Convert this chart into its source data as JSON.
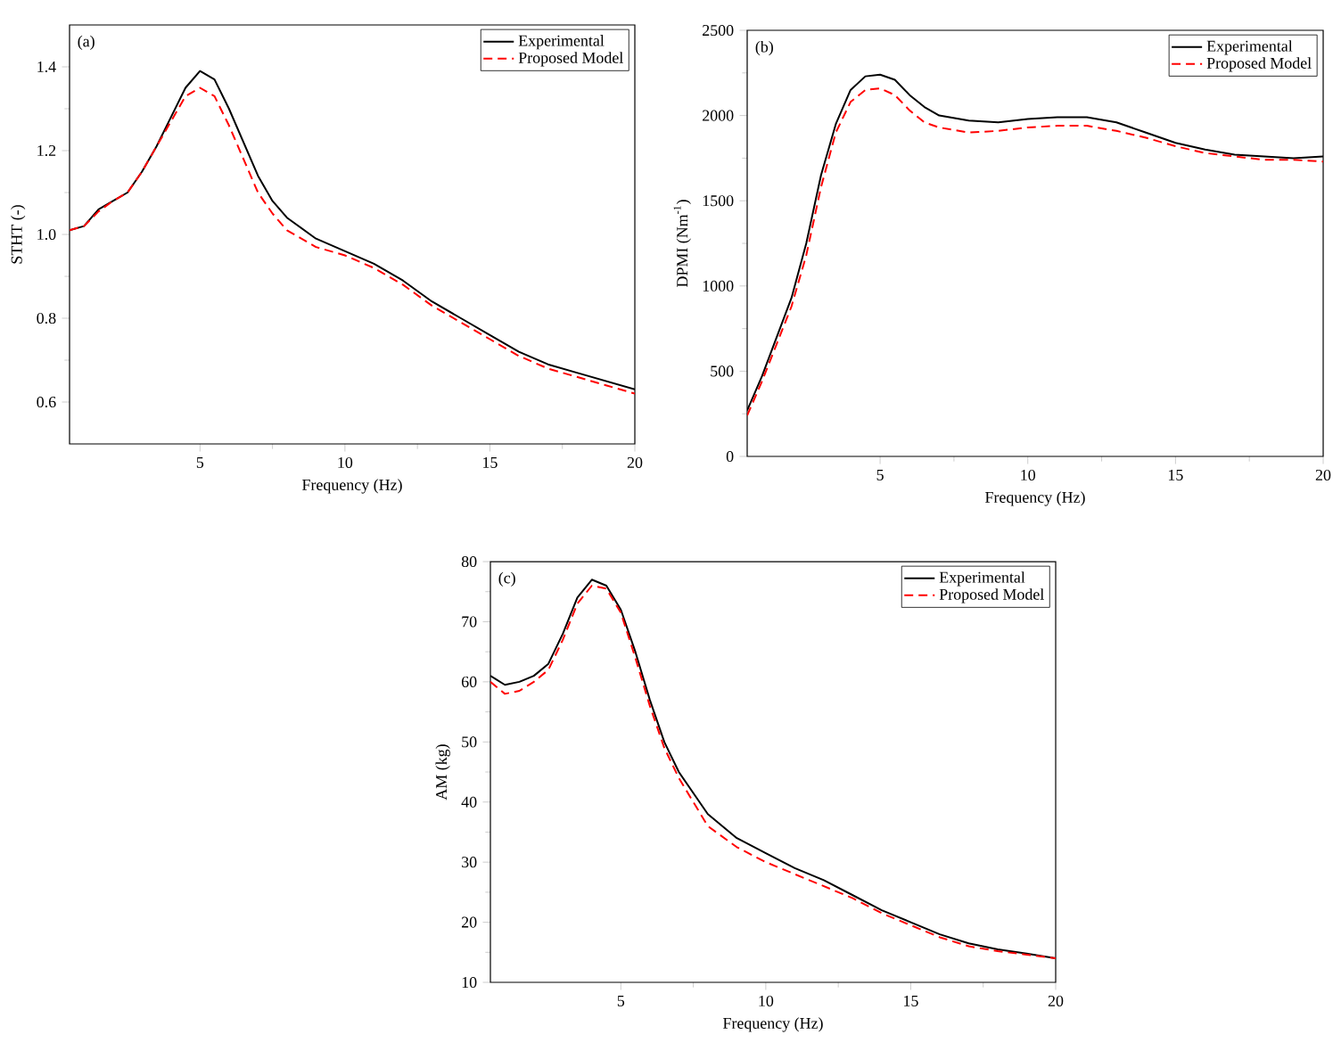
{
  "chart_data": [
    {
      "type": "line",
      "xlabel": "Frequency (Hz)",
      "ylabel": "STHT (-)",
      "annotations": [
        "(a)"
      ],
      "xlim": [
        0.5,
        20
      ],
      "ylim": [
        0.5,
        1.5
      ],
      "xticks": [
        5,
        10,
        15,
        20
      ],
      "yticks": [
        0.6,
        0.8,
        {
          "value": 1.0,
          "label": "1.0"
        },
        1.2,
        1.4
      ],
      "legend": "top right",
      "marker": "none",
      "x": [
        0.5,
        1,
        1.5,
        2,
        2.5,
        3,
        3.5,
        4,
        4.5,
        5,
        5.5,
        6,
        6.5,
        7,
        7.5,
        8,
        9,
        10,
        11,
        12,
        13,
        14,
        15,
        16,
        17,
        18,
        19,
        20
      ],
      "series": [
        {
          "name": "Experimental",
          "color": "#000000",
          "line_style": "solid",
          "values": [
            1.01,
            1.02,
            1.06,
            1.08,
            1.1,
            1.15,
            1.21,
            1.28,
            1.35,
            1.39,
            1.37,
            1.3,
            1.22,
            1.14,
            1.08,
            1.04,
            0.99,
            0.96,
            0.93,
            0.89,
            0.84,
            0.8,
            0.76,
            0.72,
            0.69,
            0.67,
            0.65,
            0.63
          ]
        },
        {
          "name": "Proposed Model",
          "color": "#ff0000",
          "line_style": "dashed",
          "values": [
            1.01,
            1.02,
            1.055,
            1.08,
            1.1,
            1.15,
            1.21,
            1.27,
            1.33,
            1.35,
            1.33,
            1.26,
            1.18,
            1.1,
            1.05,
            1.01,
            0.97,
            0.95,
            0.92,
            0.88,
            0.83,
            0.79,
            0.75,
            0.71,
            0.68,
            0.66,
            0.64,
            0.62
          ]
        }
      ]
    },
    {
      "type": "line",
      "xlabel": "Frequency (Hz)",
      "ylabel": "DPMI (Nm$^{-1}$)",
      "annotations": [
        "(b)"
      ],
      "xlim": [
        0.5,
        20
      ],
      "ylim": [
        0,
        2500
      ],
      "xticks": [
        5,
        10,
        15,
        20
      ],
      "yticks": [
        0,
        500,
        1000,
        1500,
        2000,
        2500
      ],
      "legend": "top right",
      "marker": "none",
      "x": [
        0.5,
        1,
        1.5,
        2,
        2.5,
        3,
        3.5,
        4,
        4.5,
        5,
        5.5,
        6,
        6.5,
        7,
        8,
        9,
        10,
        11,
        12,
        13,
        14,
        15,
        16,
        17,
        18,
        19,
        20
      ],
      "series": [
        {
          "name": "Experimental",
          "color": "#000000",
          "line_style": "solid",
          "values": [
            270,
            470,
            700,
            930,
            1250,
            1650,
            1950,
            2150,
            2230,
            2240,
            2210,
            2120,
            2050,
            2000,
            1970,
            1960,
            1980,
            1990,
            1990,
            1960,
            1900,
            1840,
            1800,
            1770,
            1760,
            1750,
            1760
          ]
        },
        {
          "name": "Proposed Model",
          "color": "#ff0000",
          "line_style": "dashed",
          "values": [
            240,
            440,
            660,
            880,
            1180,
            1580,
            1900,
            2080,
            2150,
            2160,
            2120,
            2030,
            1960,
            1930,
            1900,
            1910,
            1930,
            1940,
            1940,
            1910,
            1870,
            1820,
            1780,
            1760,
            1740,
            1740,
            1730
          ]
        }
      ]
    },
    {
      "type": "line",
      "xlabel": "Frequency (Hz)",
      "ylabel": "AM (kg)",
      "annotations": [
        "(c)"
      ],
      "xlim": [
        0.5,
        20
      ],
      "ylim": [
        10,
        80
      ],
      "xticks": [
        5,
        10,
        15,
        20
      ],
      "yticks": [
        10,
        20,
        30,
        40,
        50,
        60,
        70,
        80
      ],
      "legend": "top right",
      "marker": "none",
      "x": [
        0.5,
        1,
        1.5,
        2,
        2.5,
        3,
        3.5,
        4,
        4.5,
        5,
        5.5,
        6,
        6.5,
        7,
        8,
        9,
        10,
        11,
        12,
        13,
        14,
        15,
        16,
        17,
        18,
        19,
        20
      ],
      "series": [
        {
          "name": "Experimental",
          "color": "#000000",
          "line_style": "solid",
          "values": [
            61,
            59.5,
            60,
            61,
            63,
            68,
            74,
            77,
            76,
            72,
            65,
            57,
            50,
            45,
            38,
            34,
            31.5,
            29,
            27,
            24.5,
            22,
            20,
            18,
            16.5,
            15.5,
            14.8,
            14
          ]
        },
        {
          "name": "Proposed Model",
          "color": "#ff0000",
          "line_style": "dashed",
          "values": [
            60,
            58,
            58.5,
            60,
            62,
            67,
            73,
            76,
            75.5,
            71.5,
            64,
            56,
            49,
            44,
            36,
            32.5,
            30,
            28,
            26,
            24,
            21.5,
            19.5,
            17.5,
            16,
            15.2,
            14.6,
            14
          ]
        }
      ]
    }
  ]
}
